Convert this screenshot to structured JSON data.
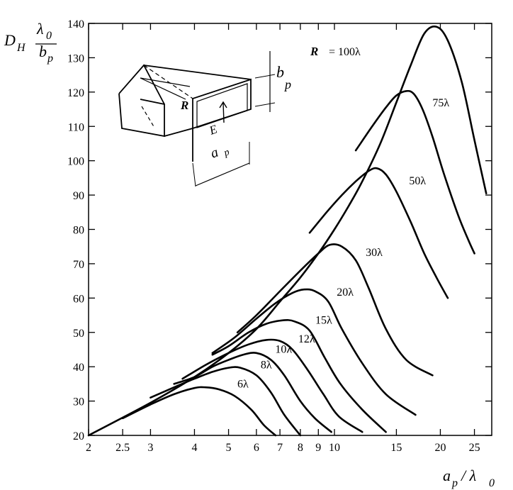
{
  "chart_data": {
    "type": "line",
    "x_scale": "log",
    "xlim": [
      2,
      28
    ],
    "ylim": [
      20,
      140
    ],
    "grid": false,
    "ylabel": {
      "main": "D",
      "sub": "H",
      "num": "λ",
      "num_sub": "0",
      "den": "b",
      "den_sub": "p"
    },
    "xlabel": {
      "main": "a",
      "sub": "p",
      "sep": " / λ",
      "sub2": "0"
    },
    "x_ticks": [
      2,
      2.5,
      3,
      4,
      5,
      6,
      7,
      8,
      9,
      10,
      15,
      20,
      25
    ],
    "x_tick_labels": [
      "2",
      "2.5",
      "3",
      "4",
      "5",
      "6",
      "7",
      "8",
      "9",
      "10",
      "15",
      "20",
      "25"
    ],
    "y_ticks": [
      20,
      30,
      40,
      50,
      60,
      70,
      80,
      90,
      100,
      110,
      120,
      130,
      140
    ],
    "y_tick_labels": [
      "20",
      "30",
      "40",
      "50",
      "60",
      "70",
      "80",
      "90",
      "100",
      "110",
      "120",
      "130",
      "140"
    ],
    "series": [
      {
        "name": "6λ",
        "label": "6λ",
        "x": [
          2.5,
          3,
          3.5,
          4,
          4.3,
          4.7,
          5.2,
          5.8,
          6.3,
          6.8
        ],
        "y": [
          25,
          29,
          32,
          33.8,
          34,
          33.4,
          31.5,
          27.5,
          23,
          20
        ]
      },
      {
        "name": "8λ",
        "label": "8λ",
        "x": [
          3,
          3.5,
          4,
          4.5,
          5,
          5.4,
          6,
          6.6,
          7.2,
          8
        ],
        "y": [
          31,
          34,
          36.5,
          38.5,
          39.7,
          39.7,
          37.5,
          32.5,
          26,
          20
        ]
      },
      {
        "name": "10λ",
        "label": "10λ",
        "x": [
          3.5,
          4,
          4.5,
          5,
          5.5,
          6,
          6.6,
          7.2,
          8,
          8.8,
          9.8
        ],
        "y": [
          35,
          37,
          40,
          42,
          43.5,
          44,
          42,
          37.5,
          30,
          25,
          21
        ]
      },
      {
        "name": "12λ",
        "label": "12λ",
        "x": [
          3.7,
          4.3,
          5,
          5.7,
          6.4,
          7,
          7.6,
          8.4,
          9.3,
          10.3,
          12
        ],
        "y": [
          36.5,
          40.5,
          44,
          46.5,
          47.8,
          47.5,
          45,
          39,
          32,
          25.5,
          21
        ]
      },
      {
        "name": "15λ",
        "label": "15λ",
        "x": [
          4.5,
          5,
          5.7,
          6.4,
          7.1,
          7.7,
          8.5,
          9.4,
          10.4,
          12,
          14
        ],
        "y": [
          43.5,
          46,
          50,
          52.5,
          53.5,
          53.2,
          50.5,
          42.5,
          35,
          27.5,
          21
        ]
      },
      {
        "name": "20λ",
        "label": "20λ",
        "x": [
          4.5,
          5.2,
          6,
          6.8,
          7.6,
          8.2,
          8.8,
          9.6,
          10.5,
          12,
          14,
          17
        ],
        "y": [
          44,
          48.5,
          54,
          58.5,
          61.5,
          62.5,
          62,
          59,
          51,
          41,
          32,
          26
        ]
      },
      {
        "name": "30λ",
        "label": "30λ",
        "x": [
          5.3,
          6,
          7,
          8,
          9,
          9.7,
          10.5,
          11.5,
          12.5,
          14,
          16,
          19
        ],
        "y": [
          50,
          55,
          62,
          68,
          73,
          75.5,
          75,
          71,
          63,
          51,
          42,
          37.5
        ]
      },
      {
        "name": "50λ",
        "label": "50λ",
        "x": [
          8.5,
          9.5,
          10.5,
          11.5,
          12.5,
          13.2,
          14,
          15,
          16.5,
          18,
          19.5,
          21
        ],
        "y": [
          79,
          85,
          90,
          94,
          97,
          97.8,
          96,
          91,
          82,
          73,
          66,
          60
        ]
      },
      {
        "name": "75λ",
        "label": "75λ",
        "x": [
          11.5,
          12.8,
          14,
          15,
          16,
          16.8,
          17.8,
          19,
          20.5,
          22.5,
          24,
          25
        ],
        "y": [
          103,
          110,
          115.5,
          119,
          120.3,
          119.5,
          115,
          107,
          96,
          84,
          77,
          73
        ]
      },
      {
        "name": "100λ",
        "label": "100λ",
        "x": [
          2,
          3,
          4,
          5,
          6,
          7,
          8,
          9,
          10,
          11,
          12,
          13.5,
          15,
          16.5,
          18,
          19.5,
          21,
          23,
          25,
          27
        ],
        "y": [
          20,
          29.5,
          37,
          44,
          51,
          59,
          66,
          73,
          80,
          87,
          94,
          105,
          117,
          128,
          137,
          139,
          135,
          123,
          106,
          90.5
        ]
      }
    ],
    "annotation": {
      "symbol": "R",
      "eq": "= 100λ"
    }
  },
  "inset": {
    "r_label": "R",
    "e_label": "E",
    "a_label": "a",
    "a_sub": "p",
    "b_label": "b",
    "b_sub": "p"
  }
}
